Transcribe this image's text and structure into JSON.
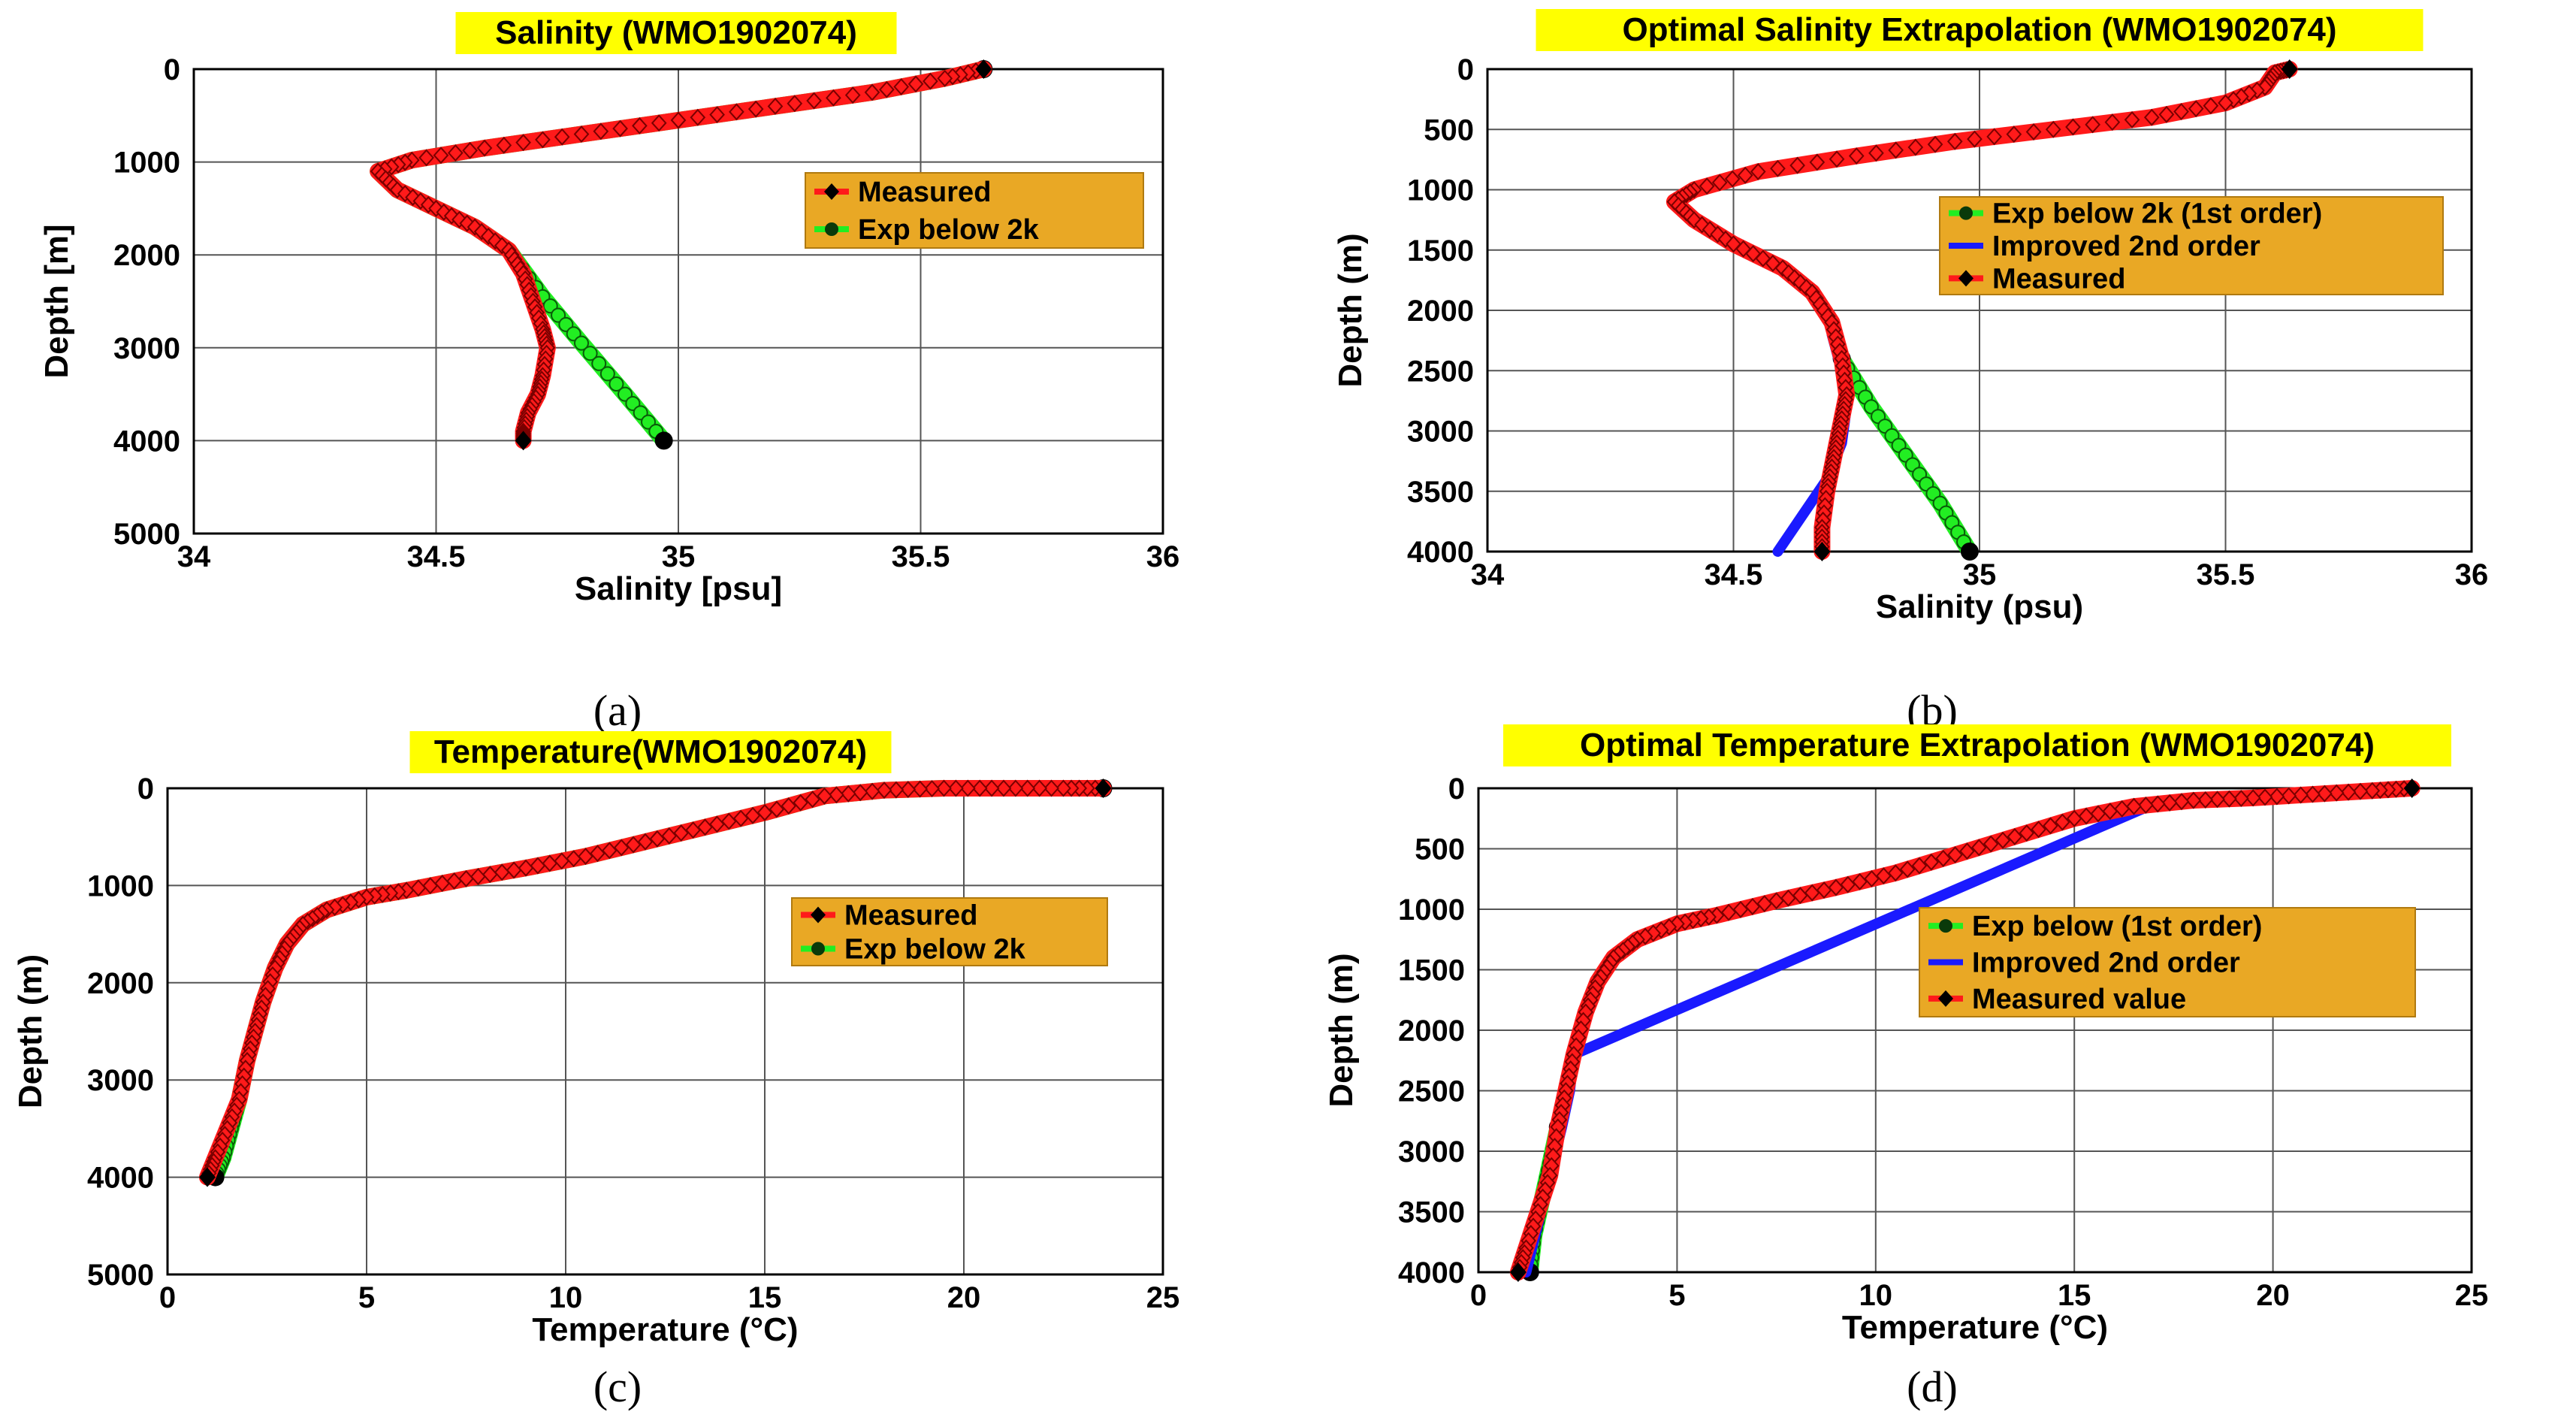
{
  "chart_data": [
    {
      "panel_label": "(a)",
      "type": "line",
      "title": "Salinity (WMO1902074)",
      "xlabel": "Salinity [psu]",
      "ylabel": "Depth [m]",
      "xlim": [
        34,
        36
      ],
      "ylim": [
        5000,
        0
      ],
      "xticks": [
        "34",
        "34.5",
        "35",
        "35.5",
        "36"
      ],
      "yticks": [
        "0",
        "1000",
        "2000",
        "3000",
        "4000",
        "5000"
      ],
      "grid": true,
      "legend_position": "right",
      "legend_entries": [
        "Measured",
        "Exp below 2k"
      ],
      "series": [
        {
          "name": "Measured",
          "color": "#ff1a1a",
          "marker": "diamond",
          "x": [
            35.63,
            35.55,
            35.4,
            35.2,
            35.0,
            34.8,
            34.6,
            34.45,
            34.38,
            34.42,
            34.5,
            34.58,
            34.65,
            34.68,
            34.7,
            34.72,
            34.73,
            34.72,
            34.71,
            34.69,
            34.68,
            34.68
          ],
          "y": [
            0,
            100,
            250,
            400,
            550,
            700,
            850,
            980,
            1100,
            1300,
            1500,
            1700,
            1950,
            2200,
            2500,
            2800,
            3000,
            3300,
            3500,
            3700,
            3900,
            4000
          ]
        },
        {
          "name": "Exp below 2k",
          "color": "#22ee22",
          "marker": "circle",
          "x": [
            35.63,
            35.55,
            35.4,
            35.2,
            35.0,
            34.8,
            34.6,
            34.45,
            34.38,
            34.42,
            34.5,
            34.58,
            34.65,
            34.72,
            34.8,
            34.89,
            34.97
          ],
          "y": [
            0,
            100,
            250,
            400,
            550,
            700,
            850,
            980,
            1100,
            1300,
            1500,
            1700,
            1950,
            2450,
            2950,
            3500,
            4000
          ]
        }
      ]
    },
    {
      "panel_label": "(b)",
      "type": "line",
      "title": "Optimal Salinity Extrapolation (WMO1902074)",
      "xlabel": "Salinity (psu)",
      "ylabel": "Depth (m)",
      "xlim": [
        34,
        36
      ],
      "ylim": [
        4000,
        0
      ],
      "xticks": [
        "34",
        "34.5",
        "35",
        "35.5",
        "36"
      ],
      "yticks": [
        "0",
        "500",
        "1000",
        "1500",
        "2000",
        "2500",
        "3000",
        "3500",
        "4000"
      ],
      "grid": true,
      "legend_position": "right",
      "legend_entries": [
        "Exp below 2k (1st order)",
        "Improved 2nd order",
        "Measured"
      ],
      "series": [
        {
          "name": "Exp below 2k (1st order)",
          "color": "#22ee22",
          "marker": "circle",
          "x": [
            34.72,
            34.78,
            34.85,
            34.92,
            34.98
          ],
          "y": [
            2400,
            2800,
            3200,
            3600,
            4000
          ]
        },
        {
          "name": "Improved 2nd order",
          "color": "#1a1aff",
          "marker": "none",
          "x": [
            34.7,
            34.72,
            34.73,
            34.72,
            34.69,
            34.64,
            34.59
          ],
          "y": [
            2200,
            2500,
            2800,
            3100,
            3400,
            3700,
            4000
          ]
        },
        {
          "name": "Measured",
          "color": "#ff1a1a",
          "marker": "diamond",
          "x": [
            35.63,
            35.6,
            35.58,
            35.5,
            35.35,
            35.15,
            34.95,
            34.75,
            34.55,
            34.42,
            34.38,
            34.42,
            34.5,
            34.6,
            34.66,
            34.7,
            34.72,
            34.73,
            34.72,
            34.71,
            34.7,
            34.69,
            34.68,
            34.68
          ],
          "y": [
            0,
            30,
            150,
            280,
            400,
            500,
            600,
            720,
            850,
            1000,
            1100,
            1250,
            1450,
            1650,
            1850,
            2100,
            2400,
            2700,
            2900,
            3100,
            3300,
            3500,
            3800,
            4000
          ]
        }
      ]
    },
    {
      "panel_label": "(c)",
      "type": "line",
      "title": "Temperature(WMO1902074)",
      "xlabel": "Temperature (°C)",
      "ylabel": "Depth (m)",
      "xlim": [
        0,
        25
      ],
      "ylim": [
        5000,
        0
      ],
      "xticks": [
        "0",
        "5",
        "10",
        "15",
        "20",
        "25"
      ],
      "yticks": [
        "0",
        "1000",
        "2000",
        "3000",
        "4000",
        "5000"
      ],
      "grid": true,
      "legend_position": "right",
      "legend_entries": [
        "Measured",
        "Exp below 2k"
      ],
      "series": [
        {
          "name": "Measured",
          "color": "#ff1a1a",
          "marker": "diamond",
          "x": [
            23.5,
            22.5,
            21,
            19.5,
            18,
            16.5,
            15,
            13.5,
            12,
            10.5,
            9,
            7.5,
            6,
            5,
            4,
            3.4,
            3,
            2.7,
            2.4,
            2.2,
            2.0,
            1.8,
            1.5,
            1.2,
            1.0
          ],
          "y": [
            0,
            0,
            0,
            0,
            20,
            80,
            250,
            400,
            550,
            700,
            820,
            930,
            1050,
            1120,
            1250,
            1400,
            1600,
            1850,
            2200,
            2500,
            2800,
            3200,
            3500,
            3800,
            4000
          ]
        },
        {
          "name": "Exp below 2k",
          "color": "#22ee22",
          "marker": "circle",
          "x": [
            23.5,
            22.5,
            21,
            19.5,
            18,
            16.5,
            15,
            13.5,
            12,
            10.5,
            9,
            7.5,
            6,
            5,
            4,
            3.4,
            3,
            2.7,
            2.4,
            2.2,
            2.0,
            1.8,
            1.6,
            1.4,
            1.2
          ],
          "y": [
            0,
            0,
            0,
            0,
            20,
            80,
            250,
            400,
            550,
            700,
            820,
            930,
            1050,
            1120,
            1250,
            1400,
            1600,
            1850,
            2200,
            2500,
            2800,
            3200,
            3500,
            3800,
            4000
          ]
        }
      ]
    },
    {
      "panel_label": "(d)",
      "type": "line",
      "title": "Optimal Temperature Extrapolation (WMO1902074)",
      "xlabel": "Temperature (°C)",
      "ylabel": "Depth (m)",
      "xlim": [
        0,
        25
      ],
      "ylim": [
        4000,
        0
      ],
      "xticks": [
        "0",
        "5",
        "10",
        "15",
        "20",
        "25"
      ],
      "yticks": [
        "0",
        "500",
        "1000",
        "1500",
        "2000",
        "2500",
        "3000",
        "3500",
        "4000"
      ],
      "grid": true,
      "legend_position": "center",
      "legend_entries": [
        "Exp below (1st order)",
        "Improved 2nd order",
        "Measured value"
      ],
      "series": [
        {
          "name": "Exp below (1st order)",
          "color": "#22ee22",
          "marker": "circle",
          "x": [
            2.0,
            1.8,
            1.6,
            1.4,
            1.3
          ],
          "y": [
            2800,
            3100,
            3400,
            3700,
            4000
          ]
        },
        {
          "name": "Improved 2nd order",
          "color": "#1a1aff",
          "marker": "none",
          "x": [
            23.5,
            21,
            19,
            17,
            2.4,
            2.3,
            2.1,
            1.8,
            1.5,
            1.2
          ],
          "y": [
            0,
            50,
            80,
            130,
            2200,
            2500,
            2800,
            3200,
            3600,
            4000
          ]
        },
        {
          "name": "Measured value",
          "color": "#ff1a1a",
          "marker": "diamond",
          "x": [
            23.5,
            22.5,
            21,
            19.5,
            18,
            16.5,
            15,
            13.5,
            12,
            10.5,
            9,
            7.5,
            6,
            5,
            4,
            3.4,
            3,
            2.7,
            2.4,
            2.2,
            2.0,
            1.8,
            1.5,
            1.2,
            1.0
          ],
          "y": [
            0,
            20,
            50,
            80,
            100,
            150,
            250,
            400,
            550,
            700,
            820,
            930,
            1050,
            1120,
            1250,
            1400,
            1600,
            1850,
            2200,
            2500,
            2800,
            3200,
            3500,
            3800,
            4000
          ]
        }
      ]
    }
  ]
}
